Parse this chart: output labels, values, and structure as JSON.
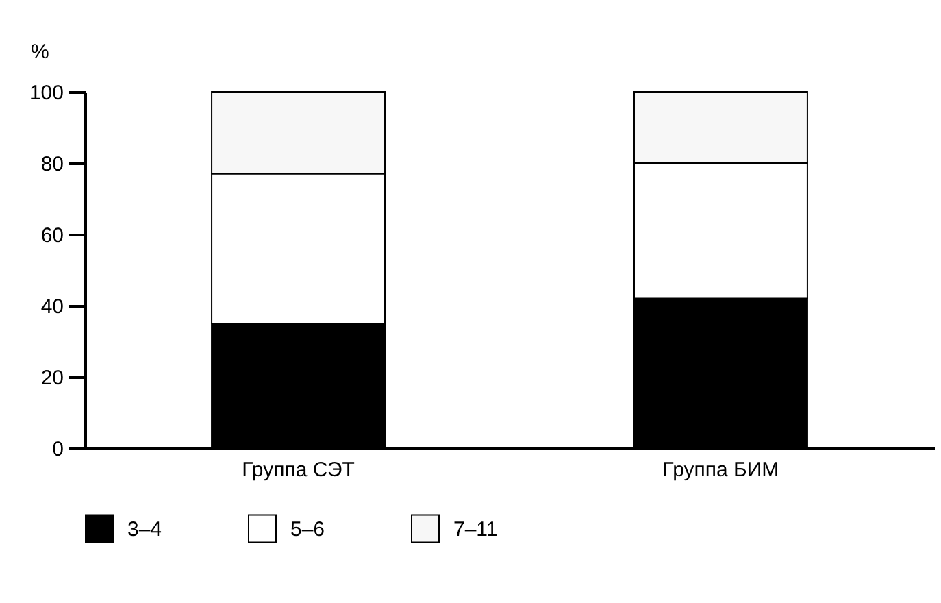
{
  "chart_data": {
    "type": "bar",
    "ylabel": "%",
    "categories": [
      "Группа СЭТ",
      "Группа БИМ"
    ],
    "stacked": true,
    "ylim": [
      0,
      100
    ],
    "yticks": [
      0,
      20,
      40,
      60,
      80,
      100
    ],
    "grid": false,
    "legend": "bottom",
    "series": [
      {
        "name": "3–4",
        "color": "#000000",
        "values": [
          35,
          42
        ]
      },
      {
        "name": "5–6",
        "color": "#ffffff",
        "values": [
          42,
          38
        ]
      },
      {
        "name": "7–11",
        "color": "#f7f7f7",
        "values": [
          23,
          20
        ]
      }
    ]
  }
}
